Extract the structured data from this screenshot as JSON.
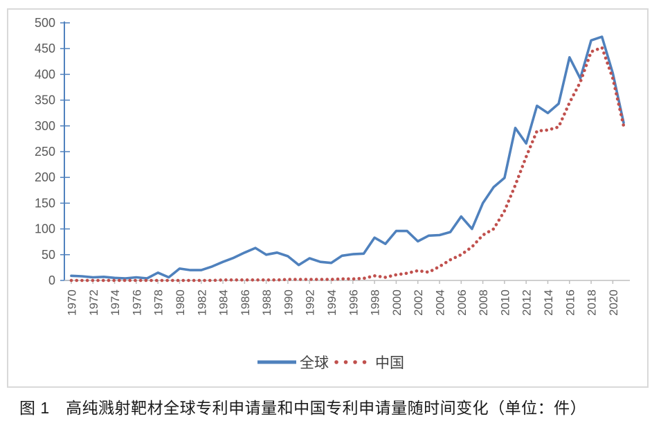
{
  "caption": "图 1　高纯溅射靶材全球专利申请量和中国专利申请量随时间变化（单位：件）",
  "colors": {
    "global_series": "#4f81bd",
    "china_series": "#c0504d",
    "y_axis": "#4f81bd",
    "x_axis": "#bfbfbf",
    "tick_text": "#595959",
    "legend_text": "#404040",
    "frame_border": "#d9d9d9"
  },
  "legend": {
    "global_label": "全球",
    "china_label": "中国"
  },
  "chart_data": {
    "type": "line",
    "title": "",
    "xlabel": "",
    "ylabel": "",
    "ylim": [
      0,
      500
    ],
    "grid": false,
    "legend_position": "bottom",
    "x": [
      1970,
      1971,
      1972,
      1973,
      1974,
      1975,
      1976,
      1977,
      1978,
      1979,
      1980,
      1981,
      1982,
      1983,
      1984,
      1985,
      1986,
      1987,
      1988,
      1989,
      1990,
      1991,
      1992,
      1993,
      1994,
      1995,
      1996,
      1997,
      1998,
      1999,
      2000,
      2001,
      2002,
      2003,
      2004,
      2005,
      2006,
      2007,
      2008,
      2009,
      2010,
      2011,
      2012,
      2013,
      2014,
      2015,
      2016,
      2017,
      2018,
      2019,
      2020,
      2021
    ],
    "x_tick_labels": [
      "1970",
      "1972",
      "1974",
      "1976",
      "1978",
      "1980",
      "1982",
      "1984",
      "1986",
      "1988",
      "1990",
      "1992",
      "1994",
      "1996",
      "1998",
      "2000",
      "2002",
      "2004",
      "2006",
      "2008",
      "2010",
      "2012",
      "2014",
      "2016",
      "2018",
      "2020"
    ],
    "y_tick_labels": [
      "0",
      "50",
      "100",
      "150",
      "200",
      "250",
      "300",
      "350",
      "400",
      "450",
      "500"
    ],
    "series": [
      {
        "name": "全球",
        "color": "#4f81bd",
        "style": "solid",
        "values": [
          9,
          8,
          6,
          7,
          5,
          4,
          6,
          4,
          15,
          6,
          23,
          20,
          20,
          27,
          36,
          44,
          54,
          63,
          50,
          54,
          47,
          30,
          43,
          36,
          34,
          48,
          51,
          52,
          83,
          71,
          96,
          96,
          76,
          87,
          88,
          94,
          124,
          100,
          150,
          181,
          199,
          296,
          266,
          339,
          325,
          343,
          433,
          392,
          466,
          473,
          402,
          306
        ]
      },
      {
        "name": "中国",
        "color": "#c0504d",
        "style": "dotted",
        "values": [
          0,
          0,
          0,
          0,
          0,
          0,
          0,
          0,
          0,
          0,
          0,
          0,
          0,
          0,
          1,
          1,
          1,
          1,
          1,
          1,
          2,
          2,
          2,
          2,
          2,
          3,
          3,
          4,
          9,
          6,
          11,
          14,
          19,
          16,
          27,
          40,
          50,
          65,
          88,
          100,
          135,
          185,
          240,
          290,
          292,
          298,
          345,
          385,
          444,
          452,
          392,
          300
        ]
      }
    ]
  }
}
